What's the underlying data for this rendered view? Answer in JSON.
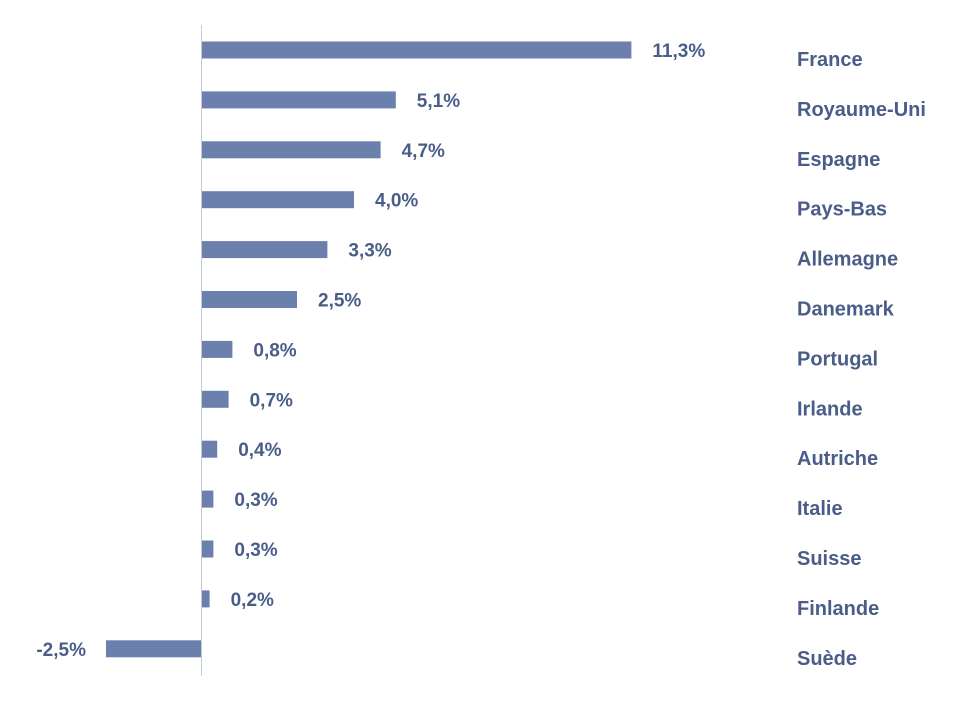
{
  "chart_data": {
    "type": "bar",
    "orientation": "horizontal",
    "categories": [
      "France",
      "Royaume-Uni",
      "Espagne",
      "Pays-Bas",
      "Allemagne",
      "Danemark",
      "Portugal",
      "Irlande",
      "Autriche",
      "Italie",
      "Suisse",
      "Finlande",
      "Suède"
    ],
    "values": [
      11.3,
      5.1,
      4.7,
      4.0,
      3.3,
      2.5,
      0.8,
      0.7,
      0.4,
      0.3,
      0.3,
      0.2,
      -2.5
    ],
    "value_labels": [
      "11,3%",
      "5,1%",
      "4,7%",
      "4,0%",
      "3,3%",
      "2,5%",
      "0,8%",
      "0,7%",
      "0,4%",
      "0,3%",
      "0,3%",
      "0,2%",
      "-2,5%"
    ],
    "title": "",
    "xlabel": "",
    "ylabel": "",
    "xlim": [
      -2.5,
      11.3
    ],
    "grid": false,
    "legend": "none",
    "bar_color": "#6b80ac",
    "label_color": "#4a5d89"
  }
}
